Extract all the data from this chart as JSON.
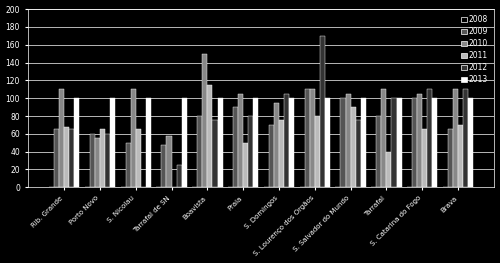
{
  "categories": [
    "Rib. Grande",
    "Porto Novo",
    "S. Nicolau",
    "Tarrafal de SN",
    "Boavista",
    "Praia",
    "S. Domingos",
    "S. Lourenço dos Orgãos",
    "S. Salvador do Mundo",
    "Tarrafal",
    "S. Catarina do Fogo",
    "Brava"
  ],
  "years": [
    "2008",
    "2009",
    "2010",
    "2011",
    "2012",
    "2013"
  ],
  "values": [
    [
      0,
      65,
      110,
      68,
      65,
      100
    ],
    [
      0,
      60,
      55,
      65,
      60,
      100
    ],
    [
      0,
      50,
      110,
      65,
      0,
      100
    ],
    [
      0,
      48,
      58,
      0,
      25,
      100
    ],
    [
      0,
      80,
      150,
      115,
      75,
      100
    ],
    [
      0,
      90,
      105,
      50,
      80,
      100
    ],
    [
      0,
      70,
      95,
      75,
      105,
      100
    ],
    [
      0,
      110,
      110,
      80,
      170,
      100
    ],
    [
      0,
      100,
      105,
      90,
      75,
      100
    ],
    [
      0,
      80,
      110,
      40,
      100,
      100
    ],
    [
      0,
      100,
      105,
      65,
      110,
      100
    ],
    [
      0,
      65,
      110,
      70,
      110,
      100
    ]
  ],
  "bar_colors": [
    "#000000",
    "#555555",
    "#888888",
    "#bbbbbb",
    "#333333",
    "#ffffff"
  ],
  "legend_labels": [
    "2008",
    "2009",
    "2010",
    "2011",
    "2012",
    "2013"
  ],
  "ylim": [
    0,
    200
  ],
  "yticks": [
    0,
    20,
    40,
    60,
    80,
    100,
    120,
    140,
    160,
    180,
    200
  ],
  "background_color": "#000000",
  "plot_bg": "#000000",
  "grid_color": "#ffffff",
  "bar_edge_color": "#ffffff",
  "text_color": "#ffffff"
}
